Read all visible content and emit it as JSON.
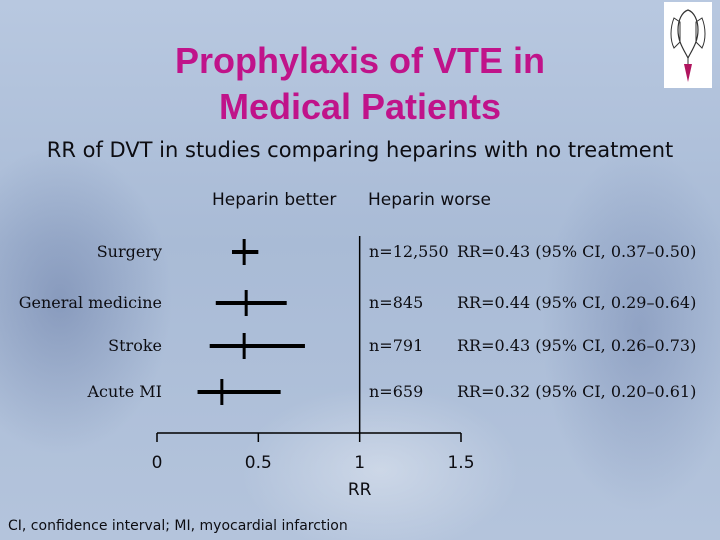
{
  "title": {
    "line1": "Prophylaxis of VTE in",
    "line2": "Medical Patients"
  },
  "subtitle": "RR of DVT in studies comparing heparins with no treatment",
  "direction_labels": {
    "left": "Heparin better",
    "right": "Heparin worse"
  },
  "footnote": "CI, confidence interval; MI, myocardial infarction",
  "colors": {
    "title": "#c0138a",
    "text": "#0d0d12",
    "marks": "#000000"
  },
  "icons": {
    "logo": "heart-lungs-logo-icon"
  },
  "chart_data": {
    "type": "forest",
    "xlabel": "RR",
    "x_ticks": [
      "0",
      "0.5",
      "1",
      "1.5"
    ],
    "xlim": [
      0,
      1.5
    ],
    "reference_line": 1,
    "studies": [
      {
        "label": "Surgery",
        "n": "n=12,550",
        "rr_text": "RR=0.43 (95% CI, 0.37–0.50)",
        "rr": 0.43,
        "ci_low": 0.37,
        "ci_high": 0.5
      },
      {
        "label": "General medicine",
        "n": "n=845",
        "rr_text": "RR=0.44 (95% CI, 0.29–0.64)",
        "rr": 0.44,
        "ci_low": 0.29,
        "ci_high": 0.64
      },
      {
        "label": "Stroke",
        "n": "n=791",
        "rr_text": "RR=0.43 (95% CI, 0.26–0.73)",
        "rr": 0.43,
        "ci_low": 0.26,
        "ci_high": 0.73
      },
      {
        "label": "Acute MI",
        "n": "n=659",
        "rr_text": "RR=0.32 (95% CI, 0.20–0.61)",
        "rr": 0.32,
        "ci_low": 0.2,
        "ci_high": 0.61
      }
    ]
  }
}
